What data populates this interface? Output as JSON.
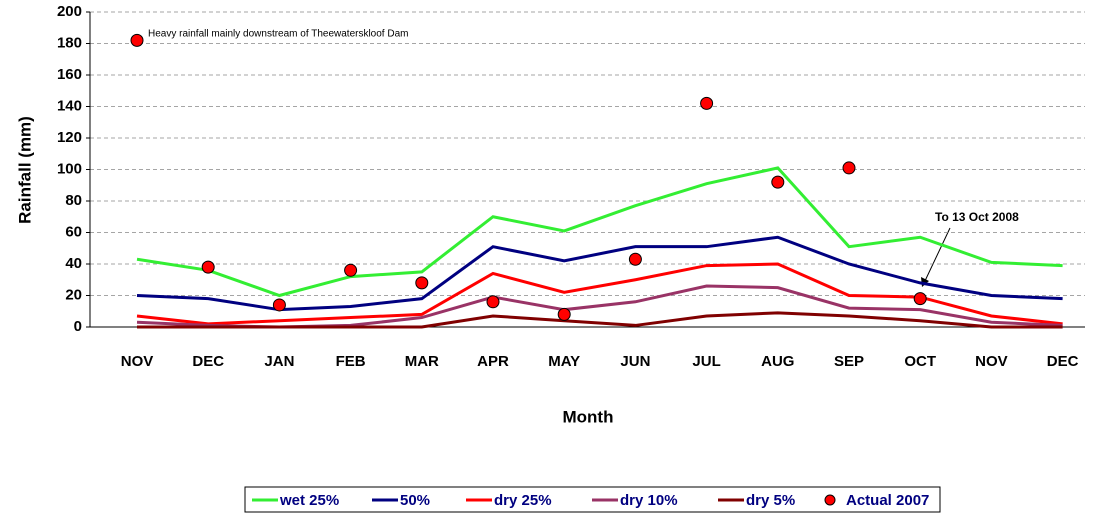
{
  "chart_data": {
    "type": "line",
    "x_label": "Month",
    "y_label": "Rainfall (mm)",
    "categories": [
      "NOV",
      "DEC",
      "JAN",
      "FEB",
      "MAR",
      "APR",
      "MAY",
      "JUN",
      "JUL",
      "AUG",
      "SEP",
      "OCT",
      "NOV",
      "DEC"
    ],
    "series": [
      {
        "name": "wet 25%",
        "color": "#33ee33",
        "values": [
          43,
          36,
          20,
          32,
          35,
          70,
          61,
          77,
          91,
          101,
          51,
          57,
          41,
          39
        ]
      },
      {
        "name": "50%",
        "color": "#000080",
        "values": [
          20,
          18,
          11,
          13,
          18,
          51,
          42,
          51,
          51,
          57,
          40,
          28,
          20,
          18
        ]
      },
      {
        "name": "dry 25%",
        "color": "#ff0000",
        "values": [
          7,
          2,
          4,
          6,
          8,
          34,
          22,
          30,
          39,
          40,
          20,
          19,
          7,
          2
        ]
      },
      {
        "name": "dry 10%",
        "color": "#993366",
        "values": [
          3,
          1,
          0,
          1,
          6,
          19,
          11,
          16,
          26,
          25,
          12,
          11,
          3,
          1
        ]
      },
      {
        "name": "dry 5%",
        "color": "#800000",
        "values": [
          0,
          0,
          0,
          0,
          0,
          7,
          4,
          1,
          7,
          9,
          7,
          4,
          0,
          0
        ]
      },
      {
        "name": "Actual 2007",
        "color": "#ff0000",
        "marker": "circle",
        "values": [
          182,
          38,
          14,
          36,
          28,
          16,
          8,
          43,
          142,
          92,
          101,
          18,
          null,
          null
        ]
      }
    ],
    "ylim": [
      0,
      200
    ],
    "yticks": [
      0,
      20,
      40,
      60,
      80,
      100,
      120,
      140,
      160,
      180,
      200
    ],
    "grid": true,
    "annotations": [
      {
        "text": "Heavy rainfall mainly downstream of Theewaterskloof Dam"
      },
      {
        "text": "To 13 Oct 2008"
      }
    ],
    "legend": "bottom"
  }
}
